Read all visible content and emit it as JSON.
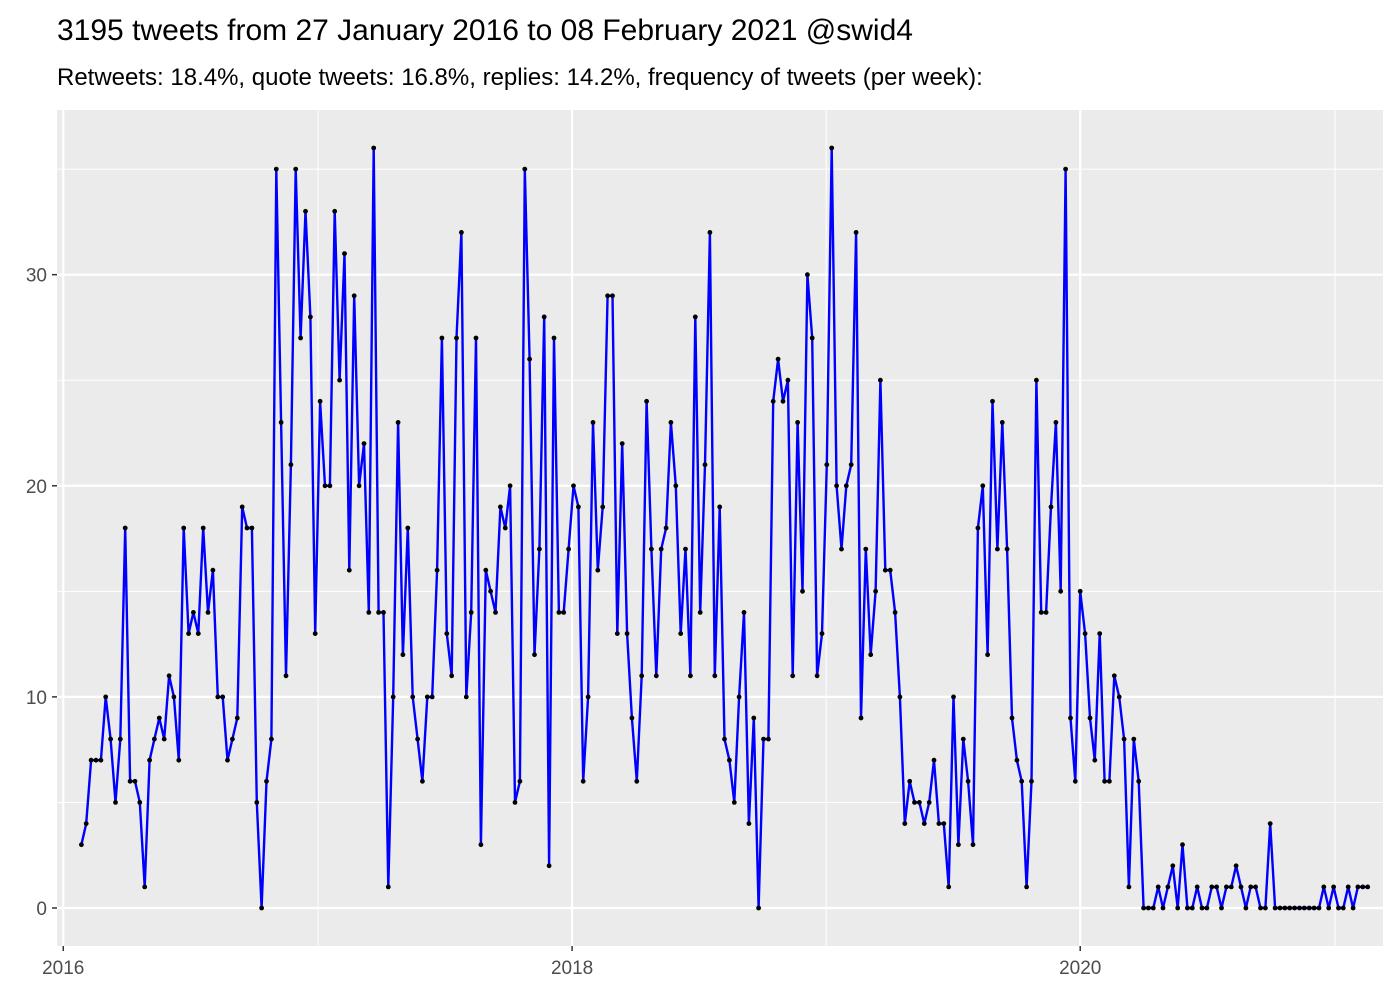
{
  "chart_data": {
    "type": "line",
    "title": "3195 tweets from 27 January 2016 to 08 February 2021 @swid4",
    "subtitle": "Retweets: 18.4%, quote tweets: 16.8%, replies: 14.2%, frequency of tweets (per week):",
    "xlabel": "",
    "ylabel": "",
    "x_start": "2016-01-27",
    "x_tick_labels": [
      "2016",
      "2018",
      "2020"
    ],
    "y_tick_labels": [
      "0",
      "10",
      "20",
      "30"
    ],
    "ylim": [
      -1.8,
      37.8
    ],
    "xlim": [
      "2015-12-23",
      "2021-03-11"
    ],
    "grid": true,
    "background": "#ebebeb",
    "grid_color": "#ffffff",
    "line_color": "#0000ff",
    "point_color": "#000000",
    "values": [
      3,
      4,
      7,
      7,
      7,
      10,
      8,
      5,
      8,
      18,
      6,
      6,
      5,
      1,
      7,
      8,
      9,
      8,
      11,
      10,
      7,
      18,
      13,
      14,
      13,
      18,
      14,
      16,
      10,
      10,
      7,
      8,
      9,
      19,
      18,
      18,
      5,
      0,
      6,
      8,
      35,
      23,
      11,
      21,
      35,
      27,
      33,
      28,
      13,
      24,
      20,
      20,
      33,
      25,
      31,
      16,
      29,
      20,
      22,
      14,
      36,
      14,
      14,
      1,
      10,
      23,
      12,
      18,
      10,
      8,
      6,
      10,
      10,
      16,
      27,
      13,
      11,
      27,
      32,
      10,
      14,
      27,
      3,
      16,
      15,
      14,
      19,
      18,
      20,
      5,
      6,
      35,
      26,
      12,
      17,
      28,
      2,
      27,
      14,
      14,
      17,
      20,
      19,
      6,
      10,
      23,
      16,
      19,
      29,
      29,
      13,
      22,
      13,
      9,
      6,
      11,
      24,
      17,
      11,
      17,
      18,
      23,
      20,
      13,
      17,
      11,
      28,
      14,
      21,
      32,
      11,
      19,
      8,
      7,
      5,
      10,
      14,
      4,
      9,
      0,
      8,
      8,
      24,
      26,
      24,
      25,
      11,
      23,
      15,
      30,
      27,
      11,
      13,
      21,
      36,
      20,
      17,
      20,
      21,
      32,
      9,
      17,
      12,
      15,
      25,
      16,
      16,
      14,
      10,
      4,
      6,
      5,
      5,
      4,
      5,
      7,
      4,
      4,
      1,
      10,
      3,
      8,
      6,
      3,
      18,
      20,
      12,
      24,
      17,
      23,
      17,
      9,
      7,
      6,
      1,
      6,
      25,
      14,
      14,
      19,
      23,
      15,
      35,
      9,
      6,
      15,
      13,
      9,
      7,
      13,
      6,
      6,
      11,
      10,
      8,
      1,
      8,
      6,
      0,
      0,
      0,
      1,
      0,
      1,
      2,
      0,
      3,
      0,
      0,
      1,
      0,
      0,
      1,
      1,
      0,
      1,
      1,
      2,
      1,
      0,
      1,
      1,
      0,
      0,
      4,
      0,
      0,
      0,
      0,
      0,
      0,
      0,
      0,
      0,
      0,
      1,
      0,
      1,
      0,
      0,
      1,
      0,
      1,
      1,
      1
    ]
  }
}
